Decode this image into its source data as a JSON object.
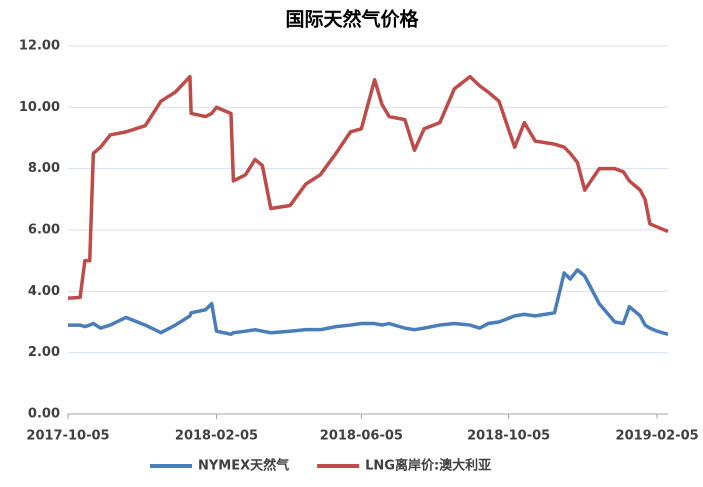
{
  "chart_data": {
    "type": "line",
    "title": "国际天然气价格",
    "x": [
      "2017-10-05",
      "2017-10-15",
      "2017-10-19",
      "2017-10-23",
      "2017-10-26",
      "2017-11-01",
      "2017-11-09",
      "2017-11-22",
      "2017-12-08",
      "2017-12-21",
      "2018-01-02",
      "2018-01-14",
      "2018-01-15",
      "2018-01-27",
      "2018-02-01",
      "2018-02-05",
      "2018-02-17",
      "2018-02-19",
      "2018-03-01",
      "2018-03-09",
      "2018-03-15",
      "2018-03-22",
      "2018-04-07",
      "2018-04-20",
      "2018-05-02",
      "2018-05-15",
      "2018-05-27",
      "2018-06-05",
      "2018-06-16",
      "2018-06-22",
      "2018-06-28",
      "2018-07-11",
      "2018-07-19",
      "2018-07-27",
      "2018-08-09",
      "2018-08-21",
      "2018-09-03",
      "2018-09-11",
      "2018-09-18",
      "2018-09-27",
      "2018-10-10",
      "2018-10-18",
      "2018-10-27",
      "2018-11-12",
      "2018-11-20",
      "2018-11-25",
      "2018-12-01",
      "2018-12-07",
      "2018-12-19",
      "2019-01-01",
      "2019-01-08",
      "2019-01-13",
      "2019-01-22",
      "2019-01-26",
      "2019-01-30",
      "2019-02-05",
      "2019-02-14"
    ],
    "series": [
      {
        "name": "NYMEX天然气",
        "color": "#4a7ebb",
        "values": [
          2.9,
          2.9,
          2.85,
          2.9,
          2.95,
          2.8,
          2.9,
          3.15,
          2.9,
          2.65,
          2.9,
          3.2,
          3.3,
          3.4,
          3.6,
          2.7,
          2.6,
          2.65,
          2.7,
          2.75,
          2.7,
          2.65,
          2.7,
          2.75,
          2.75,
          2.85,
          2.9,
          2.95,
          2.95,
          2.9,
          2.95,
          2.8,
          2.75,
          2.8,
          2.9,
          2.95,
          2.9,
          2.8,
          2.95,
          3.0,
          3.2,
          3.25,
          3.2,
          3.3,
          4.6,
          4.4,
          4.7,
          4.5,
          3.6,
          3.0,
          2.95,
          3.5,
          3.2,
          2.9,
          2.8,
          2.7,
          2.6
        ]
      },
      {
        "name": "LNG离岸价:澳大利亚",
        "color": "#be4b48",
        "values": [
          3.78,
          3.8,
          5.0,
          5.0,
          8.5,
          8.7,
          9.1,
          9.2,
          9.4,
          10.2,
          10.5,
          11.0,
          9.8,
          9.7,
          9.8,
          10.0,
          9.8,
          7.6,
          7.8,
          8.3,
          8.1,
          6.7,
          6.8,
          7.5,
          7.8,
          8.5,
          9.2,
          9.3,
          10.9,
          10.1,
          9.7,
          9.6,
          8.6,
          9.3,
          9.5,
          10.6,
          11.0,
          10.7,
          10.5,
          10.2,
          8.7,
          9.5,
          8.9,
          8.8,
          8.7,
          8.5,
          8.2,
          7.3,
          8.0,
          8.0,
          7.9,
          7.6,
          7.3,
          7.0,
          6.2,
          6.1,
          5.95
        ]
      }
    ],
    "xlim": [
      "2017-10-05",
      "2019-02-14"
    ],
    "xticks": [
      "2017-10-05",
      "2018-02-05",
      "2018-06-05",
      "2018-10-05",
      "2019-02-05"
    ],
    "ylim": [
      0,
      12
    ],
    "yticks": [
      {
        "value": 0,
        "label": "0.00"
      },
      {
        "value": 2,
        "label": "2.00"
      },
      {
        "value": 4,
        "label": "4.00"
      },
      {
        "value": 6,
        "label": "6.00"
      },
      {
        "value": 8,
        "label": "8.00"
      },
      {
        "value": 10,
        "label": "10.00"
      },
      {
        "value": 12,
        "label": "12.00"
      }
    ],
    "grid": true,
    "legend": "bottom"
  }
}
